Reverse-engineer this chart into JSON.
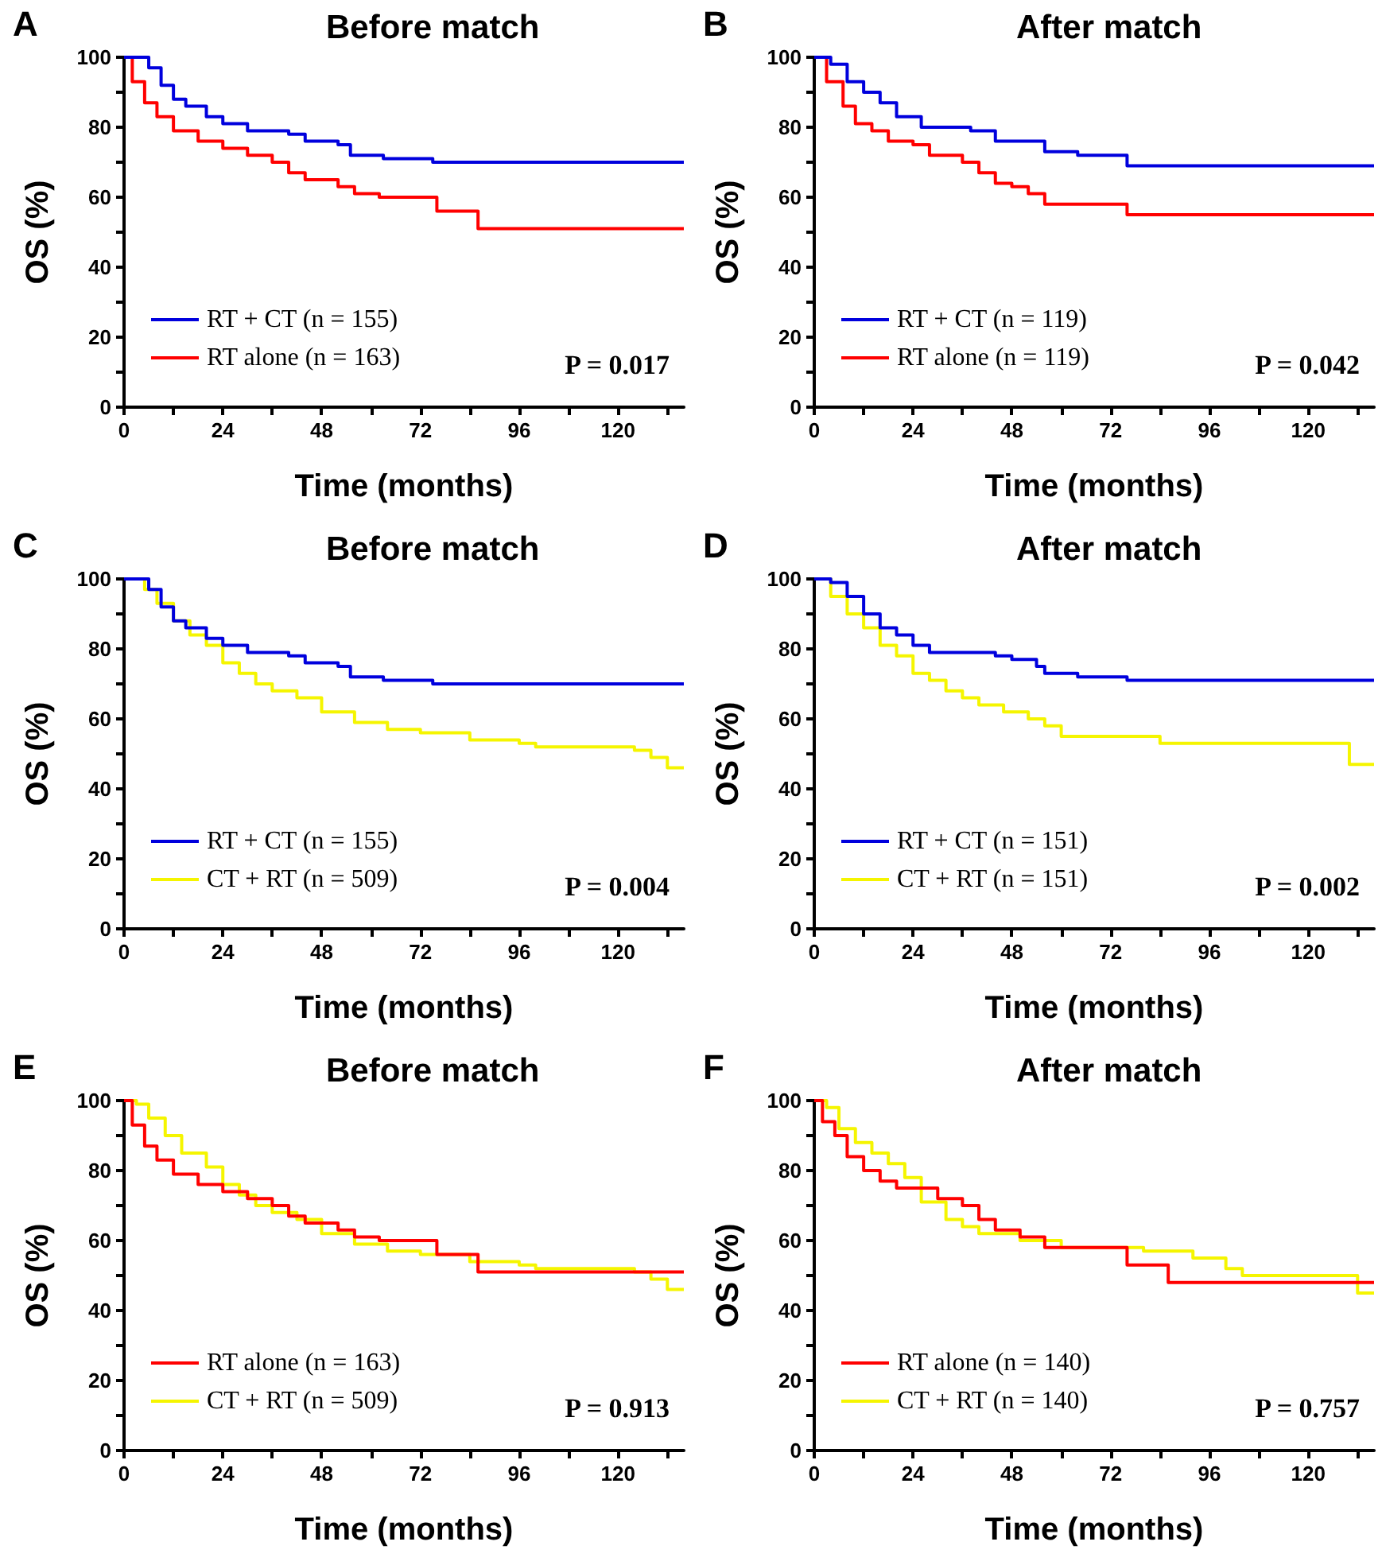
{
  "chart_data": [
    {
      "type": "step",
      "title": "Before match",
      "xlabel": "Time (months)",
      "ylabel": "OS (%)",
      "annotations": [
        "A",
        "P = 0.017"
      ],
      "legend": "bottom left",
      "xlim": [
        0,
        136
      ],
      "ylim": [
        0,
        100
      ],
      "xticks": [
        0,
        {
          "value": 12,
          "label": null
        },
        24,
        {
          "value": 36,
          "label": null
        },
        48,
        {
          "value": 60,
          "label": null
        },
        72,
        {
          "value": 84,
          "label": null
        },
        96,
        {
          "value": 108,
          "label": null
        },
        120,
        {
          "value": 132,
          "label": null
        }
      ],
      "yticks": [
        0,
        {
          "value": 10,
          "label": null
        },
        20,
        {
          "value": 30,
          "label": null
        },
        40,
        {
          "value": 50,
          "label": null
        },
        60,
        {
          "value": 70,
          "label": null
        },
        80,
        {
          "value": 90,
          "label": null
        },
        100
      ],
      "series": [
        {
          "name": "RT + CT (n = 155)",
          "color": "#0000dd",
          "x": [
            0,
            3,
            6,
            9,
            12,
            15,
            20,
            24,
            30,
            40,
            44,
            52,
            55,
            63,
            75,
            136
          ],
          "values": [
            100,
            100,
            97,
            92,
            88,
            86,
            83,
            81,
            79,
            78,
            76,
            75,
            72,
            71,
            70,
            70
          ]
        },
        {
          "name": "RT alone (n = 163)",
          "color": "#ff0000",
          "x": [
            0,
            2,
            5,
            8,
            12,
            18,
            24,
            30,
            36,
            40,
            44,
            52,
            56,
            62,
            76,
            86,
            136
          ],
          "values": [
            100,
            93,
            87,
            83,
            79,
            76,
            74,
            72,
            70,
            67,
            65,
            63,
            61,
            60,
            56,
            51,
            51
          ]
        }
      ]
    },
    {
      "type": "step",
      "title": "After match",
      "xlabel": "Time (months)",
      "ylabel": "OS (%)",
      "annotations": [
        "B",
        "P = 0.042"
      ],
      "legend": "bottom left",
      "xlim": [
        0,
        136
      ],
      "ylim": [
        0,
        100
      ],
      "xticks": [
        0,
        {
          "value": 12,
          "label": null
        },
        24,
        {
          "value": 36,
          "label": null
        },
        48,
        {
          "value": 60,
          "label": null
        },
        72,
        {
          "value": 84,
          "label": null
        },
        96,
        {
          "value": 108,
          "label": null
        },
        120,
        {
          "value": 132,
          "label": null
        }
      ],
      "yticks": [
        0,
        {
          "value": 10,
          "label": null
        },
        20,
        {
          "value": 30,
          "label": null
        },
        40,
        {
          "value": 50,
          "label": null
        },
        60,
        {
          "value": 70,
          "label": null
        },
        80,
        {
          "value": 90,
          "label": null
        },
        100
      ],
      "series": [
        {
          "name": "RT + CT (n = 119)",
          "color": "#0000dd",
          "x": [
            0,
            4,
            8,
            12,
            16,
            20,
            26,
            38,
            44,
            56,
            64,
            76,
            136
          ],
          "values": [
            100,
            98,
            93,
            90,
            87,
            83,
            80,
            79,
            76,
            73,
            72,
            69,
            69
          ]
        },
        {
          "name": "RT alone (n = 119)",
          "color": "#ff0000",
          "x": [
            0,
            3,
            7,
            10,
            14,
            18,
            24,
            28,
            36,
            40,
            44,
            48,
            52,
            56,
            76,
            136
          ],
          "values": [
            100,
            93,
            86,
            81,
            79,
            76,
            75,
            72,
            70,
            67,
            64,
            63,
            61,
            58,
            55,
            55
          ]
        }
      ]
    },
    {
      "type": "step",
      "title": "Before match",
      "xlabel": "Time (months)",
      "ylabel": "OS (%)",
      "annotations": [
        "C",
        "P = 0.004"
      ],
      "legend": "bottom left",
      "xlim": [
        0,
        136
      ],
      "ylim": [
        0,
        100
      ],
      "xticks": [
        0,
        {
          "value": 12,
          "label": null
        },
        24,
        {
          "value": 36,
          "label": null
        },
        48,
        {
          "value": 60,
          "label": null
        },
        72,
        {
          "value": 84,
          "label": null
        },
        96,
        {
          "value": 108,
          "label": null
        },
        120,
        {
          "value": 132,
          "label": null
        }
      ],
      "yticks": [
        0,
        {
          "value": 10,
          "label": null
        },
        20,
        {
          "value": 30,
          "label": null
        },
        40,
        {
          "value": 50,
          "label": null
        },
        60,
        {
          "value": 70,
          "label": null
        },
        80,
        {
          "value": 90,
          "label": null
        },
        100
      ],
      "series": [
        {
          "name": "RT + CT (n = 155)",
          "color": "#0000dd",
          "x": [
            0,
            3,
            6,
            9,
            12,
            15,
            20,
            24,
            30,
            40,
            44,
            52,
            55,
            63,
            75,
            136
          ],
          "values": [
            100,
            100,
            97,
            92,
            88,
            86,
            83,
            81,
            79,
            78,
            76,
            75,
            72,
            71,
            70,
            70
          ]
        },
        {
          "name": "CT + RT (n = 509)",
          "color": "#f5f500",
          "x": [
            0,
            5,
            8,
            12,
            16,
            20,
            24,
            28,
            32,
            36,
            42,
            48,
            56,
            64,
            72,
            84,
            96,
            100,
            124,
            128,
            132,
            136
          ],
          "values": [
            100,
            97,
            93,
            88,
            84,
            81,
            76,
            73,
            70,
            68,
            66,
            62,
            59,
            57,
            56,
            54,
            53,
            52,
            51,
            49,
            46,
            46
          ]
        }
      ]
    },
    {
      "type": "step",
      "title": "After match",
      "xlabel": "Time (months)",
      "ylabel": "OS (%)",
      "annotations": [
        "D",
        "P = 0.002"
      ],
      "legend": "bottom left",
      "xlim": [
        0,
        136
      ],
      "ylim": [
        0,
        100
      ],
      "xticks": [
        0,
        {
          "value": 12,
          "label": null
        },
        24,
        {
          "value": 36,
          "label": null
        },
        48,
        {
          "value": 60,
          "label": null
        },
        72,
        {
          "value": 84,
          "label": null
        },
        96,
        {
          "value": 108,
          "label": null
        },
        120,
        {
          "value": 132,
          "label": null
        }
      ],
      "yticks": [
        0,
        {
          "value": 10,
          "label": null
        },
        20,
        {
          "value": 30,
          "label": null
        },
        40,
        {
          "value": 50,
          "label": null
        },
        60,
        {
          "value": 70,
          "label": null
        },
        80,
        {
          "value": 90,
          "label": null
        },
        100
      ],
      "series": [
        {
          "name": "RT + CT (n = 151)",
          "color": "#0000dd",
          "x": [
            0,
            4,
            8,
            12,
            16,
            20,
            24,
            28,
            44,
            48,
            54,
            56,
            64,
            76,
            136
          ],
          "values": [
            100,
            99,
            95,
            90,
            86,
            84,
            81,
            79,
            78,
            77,
            75,
            73,
            72,
            71,
            71
          ]
        },
        {
          "name": "CT + RT (n = 151)",
          "color": "#f5f500",
          "x": [
            0,
            4,
            8,
            12,
            16,
            20,
            24,
            28,
            32,
            36,
            40,
            46,
            52,
            56,
            60,
            84,
            130,
            136
          ],
          "values": [
            100,
            95,
            90,
            86,
            81,
            78,
            73,
            71,
            68,
            66,
            64,
            62,
            60,
            58,
            55,
            53,
            47,
            47
          ]
        }
      ]
    },
    {
      "type": "step",
      "title": "Before match",
      "xlabel": "Time (months)",
      "ylabel": "OS (%)",
      "annotations": [
        "E",
        "P = 0.913"
      ],
      "legend": "bottom left",
      "xlim": [
        0,
        136
      ],
      "ylim": [
        0,
        100
      ],
      "xticks": [
        0,
        {
          "value": 12,
          "label": null
        },
        24,
        {
          "value": 36,
          "label": null
        },
        48,
        {
          "value": 60,
          "label": null
        },
        72,
        {
          "value": 84,
          "label": null
        },
        96,
        {
          "value": 108,
          "label": null
        },
        120,
        {
          "value": 132,
          "label": null
        }
      ],
      "yticks": [
        0,
        {
          "value": 10,
          "label": null
        },
        20,
        {
          "value": 30,
          "label": null
        },
        40,
        {
          "value": 50,
          "label": null
        },
        60,
        {
          "value": 70,
          "label": null
        },
        80,
        {
          "value": 90,
          "label": null
        },
        100
      ],
      "series": [
        {
          "name": "RT alone (n = 163)",
          "color": "#ff0000",
          "x": [
            0,
            2,
            5,
            8,
            12,
            18,
            24,
            30,
            36,
            40,
            44,
            52,
            56,
            62,
            76,
            86,
            136
          ],
          "values": [
            100,
            93,
            87,
            83,
            79,
            76,
            74,
            72,
            70,
            67,
            65,
            63,
            61,
            60,
            56,
            51,
            51
          ]
        },
        {
          "name": "CT + RT (n = 509)",
          "color": "#f5f500",
          "x": [
            0,
            3,
            6,
            10,
            14,
            20,
            24,
            28,
            32,
            36,
            42,
            48,
            56,
            64,
            72,
            84,
            96,
            100,
            124,
            128,
            132,
            136
          ],
          "values": [
            100,
            99,
            95,
            90,
            85,
            81,
            76,
            73,
            70,
            68,
            66,
            62,
            59,
            57,
            56,
            54,
            53,
            52,
            51,
            49,
            46,
            46
          ]
        }
      ]
    },
    {
      "type": "step",
      "title": "After match",
      "xlabel": "Time (months)",
      "ylabel": "OS (%)",
      "annotations": [
        "F",
        "P = 0.757"
      ],
      "legend": "bottom left",
      "xlim": [
        0,
        136
      ],
      "ylim": [
        0,
        100
      ],
      "xticks": [
        0,
        {
          "value": 12,
          "label": null
        },
        24,
        {
          "value": 36,
          "label": null
        },
        48,
        {
          "value": 60,
          "label": null
        },
        72,
        {
          "value": 84,
          "label": null
        },
        96,
        {
          "value": 108,
          "label": null
        },
        120,
        {
          "value": 132,
          "label": null
        }
      ],
      "yticks": [
        0,
        {
          "value": 10,
          "label": null
        },
        20,
        {
          "value": 30,
          "label": null
        },
        40,
        {
          "value": 50,
          "label": null
        },
        60,
        {
          "value": 70,
          "label": null
        },
        80,
        {
          "value": 90,
          "label": null
        },
        100
      ],
      "series": [
        {
          "name": "RT alone (n = 140)",
          "color": "#ff0000",
          "x": [
            0,
            2,
            5,
            8,
            12,
            16,
            20,
            30,
            36,
            40,
            44,
            50,
            56,
            76,
            86,
            136
          ],
          "values": [
            100,
            94,
            90,
            84,
            80,
            77,
            75,
            72,
            70,
            66,
            63,
            61,
            58,
            53,
            48,
            48
          ]
        },
        {
          "name": "CT + RT (n = 140)",
          "color": "#f5f500",
          "x": [
            0,
            3,
            6,
            10,
            14,
            18,
            22,
            26,
            32,
            36,
            40,
            50,
            60,
            80,
            92,
            100,
            104,
            132,
            136
          ],
          "values": [
            100,
            98,
            92,
            88,
            85,
            82,
            78,
            71,
            66,
            64,
            62,
            60,
            58,
            57,
            55,
            52,
            50,
            45,
            45
          ]
        }
      ]
    }
  ]
}
